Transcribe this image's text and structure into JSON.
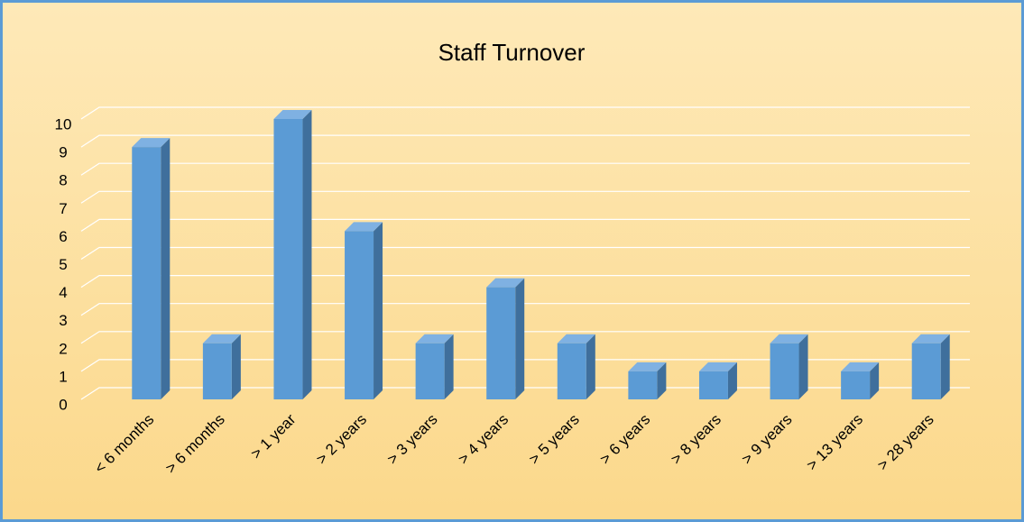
{
  "chart_data": {
    "type": "bar3d",
    "title": "Staff Turnover",
    "categories": [
      "< 6 months",
      "> 6 months",
      "> 1 year",
      "> 2 years",
      "> 3 years",
      "> 4 years",
      "> 5 years",
      "> 6 years",
      "> 8 years",
      "> 9 years",
      "> 13 years",
      "> 28 years"
    ],
    "values": [
      9,
      2,
      10,
      6,
      2,
      4,
      2,
      1,
      1,
      2,
      1,
      2
    ],
    "color": "#5b9bd5",
    "ylim": [
      0,
      10
    ],
    "yticks": [
      0,
      1,
      2,
      3,
      4,
      5,
      6,
      7,
      8,
      9,
      10
    ],
    "grid": true
  }
}
